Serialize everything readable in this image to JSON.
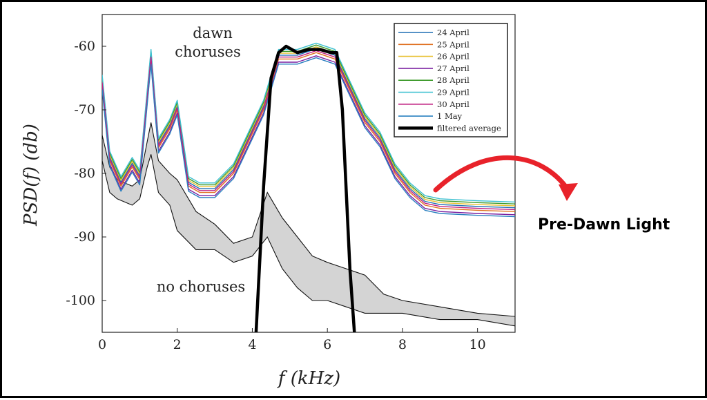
{
  "chart_data": {
    "type": "line",
    "title": "",
    "xlabel": "f (kHz)",
    "ylabel": "PSD(f) (db)",
    "xlim": [
      0,
      11
    ],
    "ylim": [
      -105,
      -55
    ],
    "xticks": [
      0,
      2,
      4,
      6,
      8,
      10
    ],
    "yticks": [
      -60,
      -70,
      -80,
      -90,
      -100
    ],
    "xtick_labels": [
      "0",
      "2",
      "4",
      "6",
      "8",
      "10"
    ],
    "ytick_labels": [
      "-60",
      "-70",
      "-80",
      "-90",
      "-100"
    ],
    "legend_position": "top-right",
    "annotations": {
      "dawn_line1": "dawn",
      "dawn_line2": "choruses",
      "no_choruses": "no choruses"
    },
    "series": [
      {
        "name": "24 April",
        "color": "#1f6fb4",
        "offset": 0.6,
        "x": [
          0,
          0.2,
          0.5,
          0.8,
          1.0,
          1.3,
          1.5,
          1.8,
          2.0,
          2.3,
          2.6,
          3.0,
          3.5,
          3.9,
          4.3,
          4.7,
          5.2,
          5.7,
          6.2,
          6.6,
          7.0,
          7.4,
          7.8,
          8.2,
          8.6,
          9.0,
          10.0,
          11.0
        ],
        "values": [
          -66,
          -78,
          -82,
          -79,
          -81,
          -62,
          -76,
          -73,
          -70,
          -82,
          -83,
          -83,
          -80,
          -75,
          -70,
          -62,
          -62,
          -61,
          -62,
          -67,
          -72,
          -75,
          -80,
          -83,
          -85,
          -85.5,
          -85.8,
          -86
        ]
      },
      {
        "name": "25 April",
        "color": "#e07020",
        "offset": 0.0,
        "x": [
          0,
          0.2,
          0.5,
          0.8,
          1.0,
          1.3,
          1.5,
          1.8,
          2.0,
          2.3,
          2.6,
          3.0,
          3.5,
          3.9,
          4.3,
          4.7,
          5.2,
          5.7,
          6.2,
          6.6,
          7.0,
          7.4,
          7.8,
          8.2,
          8.6,
          9.0,
          10.0,
          11.0
        ],
        "values": [
          -66,
          -78,
          -82,
          -79,
          -81,
          -62,
          -76,
          -73,
          -70,
          -82,
          -83,
          -83,
          -80,
          -75,
          -70,
          -62,
          -62,
          -61,
          -62,
          -67,
          -72,
          -75,
          -80,
          -83,
          -85,
          -85.5,
          -85.8,
          -86
        ]
      },
      {
        "name": "26 April",
        "color": "#e8c030",
        "offset": 0.9,
        "x": [
          0,
          0.2,
          0.5,
          0.8,
          1.0,
          1.3,
          1.5,
          1.8,
          2.0,
          2.3,
          2.6,
          3.0,
          3.5,
          3.9,
          4.3,
          4.7,
          5.2,
          5.7,
          6.2,
          6.6,
          7.0,
          7.4,
          7.8,
          8.2,
          8.6,
          9.0,
          10.0,
          11.0
        ],
        "values": [
          -66,
          -78,
          -82,
          -79,
          -81,
          -62,
          -76,
          -73,
          -70,
          -82,
          -83,
          -83,
          -80,
          -75,
          -70,
          -62,
          -62,
          -61,
          -62,
          -67,
          -72,
          -75,
          -80,
          -83,
          -85,
          -85.5,
          -85.8,
          -86
        ]
      },
      {
        "name": "27 April",
        "color": "#7a1fa0",
        "offset": -0.5,
        "x": [
          0,
          0.2,
          0.5,
          0.8,
          1.0,
          1.3,
          1.5,
          1.8,
          2.0,
          2.3,
          2.6,
          3.0,
          3.5,
          3.9,
          4.3,
          4.7,
          5.2,
          5.7,
          6.2,
          6.6,
          7.0,
          7.4,
          7.8,
          8.2,
          8.6,
          9.0,
          10.0,
          11.0
        ],
        "values": [
          -66,
          -78,
          -82,
          -79,
          -81,
          -62,
          -76,
          -73,
          -70,
          -82,
          -83,
          -83,
          -80,
          -75,
          -70,
          -62,
          -62,
          -61,
          -62,
          -67,
          -72,
          -75,
          -80,
          -83,
          -85,
          -85.5,
          -85.8,
          -86
        ]
      },
      {
        "name": "28 April",
        "color": "#3c9a2a",
        "offset": 1.2,
        "x": [
          0,
          0.2,
          0.5,
          0.8,
          1.0,
          1.3,
          1.5,
          1.8,
          2.0,
          2.3,
          2.6,
          3.0,
          3.5,
          3.9,
          4.3,
          4.7,
          5.2,
          5.7,
          6.2,
          6.6,
          7.0,
          7.4,
          7.8,
          8.2,
          8.6,
          9.0,
          10.0,
          11.0
        ],
        "values": [
          -66,
          -78,
          -82,
          -79,
          -81,
          -62,
          -76,
          -73,
          -70,
          -82,
          -83,
          -83,
          -80,
          -75,
          -70,
          -62,
          -62,
          -61,
          -62,
          -67,
          -72,
          -75,
          -80,
          -83,
          -85,
          -85.5,
          -85.8,
          -86
        ]
      },
      {
        "name": "29 April",
        "color": "#3cc0d0",
        "offset": 1.5,
        "x": [
          0,
          0.2,
          0.5,
          0.8,
          1.0,
          1.3,
          1.5,
          1.8,
          2.0,
          2.3,
          2.6,
          3.0,
          3.5,
          3.9,
          4.3,
          4.7,
          5.2,
          5.7,
          6.2,
          6.6,
          7.0,
          7.4,
          7.8,
          8.2,
          8.6,
          9.0,
          10.0,
          11.0
        ],
        "values": [
          -66,
          -78,
          -82,
          -79,
          -81,
          -62,
          -76,
          -73,
          -70,
          -82,
          -83,
          -83,
          -80,
          -75,
          -70,
          -62,
          -62,
          -61,
          -62,
          -67,
          -72,
          -75,
          -80,
          -83,
          -85,
          -85.5,
          -85.8,
          -86
        ]
      },
      {
        "name": "30 April",
        "color": "#c02080",
        "offset": 0.3,
        "x": [
          0,
          0.2,
          0.5,
          0.8,
          1.0,
          1.3,
          1.5,
          1.8,
          2.0,
          2.3,
          2.6,
          3.0,
          3.5,
          3.9,
          4.3,
          4.7,
          5.2,
          5.7,
          6.2,
          6.6,
          7.0,
          7.4,
          7.8,
          8.2,
          8.6,
          9.0,
          10.0,
          11.0
        ],
        "values": [
          -66,
          -78,
          -82,
          -79,
          -81,
          -62,
          -76,
          -73,
          -70,
          -82,
          -83,
          -83,
          -80,
          -75,
          -70,
          -62,
          -62,
          -61,
          -62,
          -67,
          -72,
          -75,
          -80,
          -83,
          -85,
          -85.5,
          -85.8,
          -86
        ]
      },
      {
        "name": "1 May",
        "color": "#2a80c0",
        "offset": -0.8,
        "x": [
          0,
          0.2,
          0.5,
          0.8,
          1.0,
          1.3,
          1.5,
          1.8,
          2.0,
          2.3,
          2.6,
          3.0,
          3.5,
          3.9,
          4.3,
          4.7,
          5.2,
          5.7,
          6.2,
          6.6,
          7.0,
          7.4,
          7.8,
          8.2,
          8.6,
          9.0,
          10.0,
          11.0
        ],
        "values": [
          -66,
          -78,
          -82,
          -79,
          -81,
          -62,
          -76,
          -73,
          -70,
          -82,
          -83,
          -83,
          -80,
          -75,
          -70,
          -62,
          -62,
          -61,
          -62,
          -67,
          -72,
          -75,
          -80,
          -83,
          -85,
          -85.5,
          -85.8,
          -86
        ]
      },
      {
        "name": "filtered average",
        "color": "#000000",
        "offset": 0,
        "x": [
          4.1,
          4.3,
          4.5,
          4.7,
          4.9,
          5.2,
          5.5,
          5.8,
          6.1,
          6.25,
          6.4,
          6.6,
          6.72
        ],
        "values": [
          -105,
          -82,
          -65,
          -61,
          -60,
          -61,
          -60.5,
          -60.5,
          -61,
          -61,
          -70,
          -95,
          -105
        ]
      }
    ],
    "no_chorus_band": {
      "name": "no choruses",
      "fill": "#d4d4d4",
      "x": [
        0,
        0.2,
        0.4,
        0.8,
        1.0,
        1.2,
        1.3,
        1.5,
        1.8,
        2.0,
        2.5,
        3.0,
        3.5,
        4.0,
        4.4,
        4.8,
        5.2,
        5.6,
        6.0,
        6.5,
        7.0,
        7.5,
        8.0,
        9.0,
        10.0,
        11.0
      ],
      "upper": [
        -74,
        -79,
        -81,
        -82,
        -81,
        -75,
        -72,
        -78,
        -80,
        -81,
        -86,
        -88,
        -91,
        -90,
        -83,
        -87,
        -90,
        -93,
        -94,
        -95,
        -96,
        -99,
        -100,
        -101,
        -102,
        -102.5
      ],
      "lower": [
        -78,
        -83,
        -84,
        -85,
        -84,
        -79,
        -77,
        -83,
        -85,
        -89,
        -92,
        -92,
        -94,
        -93,
        -90,
        -95,
        -98,
        -100,
        -100,
        -101,
        -102,
        -102,
        -102,
        -103,
        -103,
        -104
      ]
    }
  },
  "side_label": "Pre-Dawn Light",
  "arrow_color": "#e8222a"
}
